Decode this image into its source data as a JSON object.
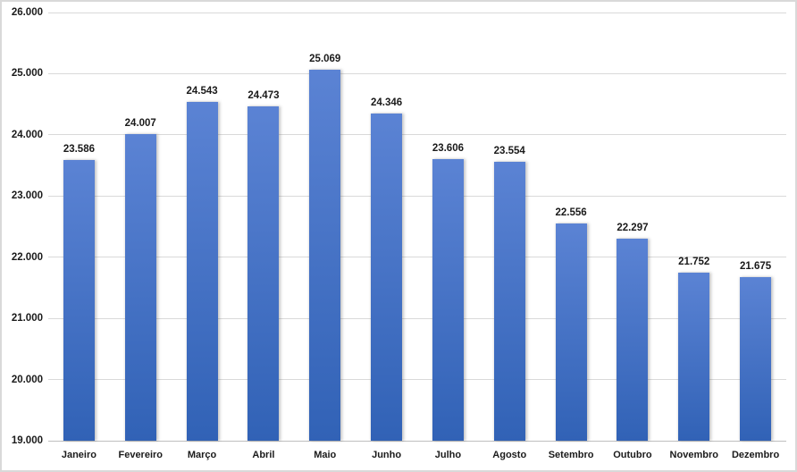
{
  "chart_data": {
    "type": "bar",
    "title": "",
    "xlabel": "",
    "ylabel": "",
    "categories": [
      "Janeiro",
      "Fevereiro",
      "Março",
      "Abril",
      "Maio",
      "Junho",
      "Julho",
      "Agosto",
      "Setembro",
      "Outubro",
      "Novembro",
      "Dezembro"
    ],
    "values": [
      23586,
      24007,
      24543,
      24473,
      25069,
      24346,
      23606,
      23554,
      22556,
      22297,
      21752,
      21675
    ],
    "value_labels": [
      "23.586",
      "24.007",
      "24.543",
      "24.473",
      "25.069",
      "24.346",
      "23.606",
      "23.554",
      "22.556",
      "22.297",
      "21.752",
      "21.675"
    ],
    "y_axis": {
      "min": 19000,
      "max": 26000,
      "step": 1000,
      "tick_labels": [
        "19.000",
        "20.000",
        "21.000",
        "22.000",
        "23.000",
        "24.000",
        "25.000",
        "26.000"
      ]
    },
    "grid": true,
    "legend_position": "none",
    "colors": {
      "bar_gradient_top": "#5b83d4",
      "bar_gradient_bottom": "#3162b6",
      "gridline": "#d9d9d9",
      "axis_line": "#bfbfbf",
      "label_text": "#1a1a1a",
      "chart_border": "#d9d9d9",
      "background": "#ffffff"
    }
  }
}
